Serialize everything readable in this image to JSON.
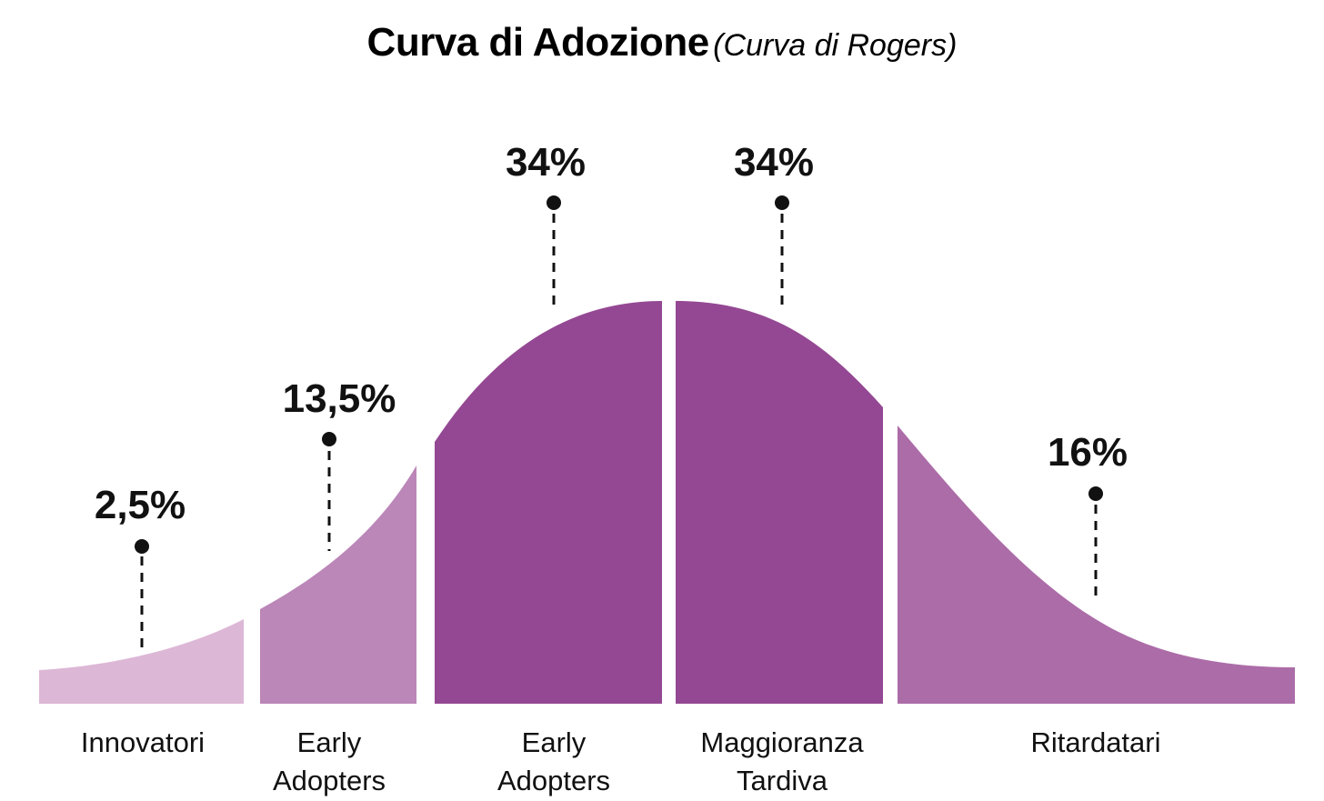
{
  "title": {
    "main": "Curva di Adozione",
    "sub": "(Curva di Rogers)"
  },
  "segments": [
    {
      "id": "innovatori",
      "percent": "2,5%",
      "label_lines": [
        "Innovatori"
      ],
      "color": "#ddb7d6"
    },
    {
      "id": "early-adopters-1",
      "percent": "13,5%",
      "label_lines": [
        "Early",
        "Adopters"
      ],
      "color": "#bb86b8"
    },
    {
      "id": "early-adopters-2",
      "percent": "34%",
      "label_lines": [
        "Early",
        "Adopters"
      ],
      "color": "#944893"
    },
    {
      "id": "maggioranza",
      "percent": "34%",
      "label_lines": [
        "Maggioranza",
        "Tardiva"
      ],
      "color": "#944893"
    },
    {
      "id": "ritardatari",
      "percent": "16%",
      "label_lines": [
        "Ritardatari"
      ],
      "color": "#ac6ca8"
    }
  ]
}
